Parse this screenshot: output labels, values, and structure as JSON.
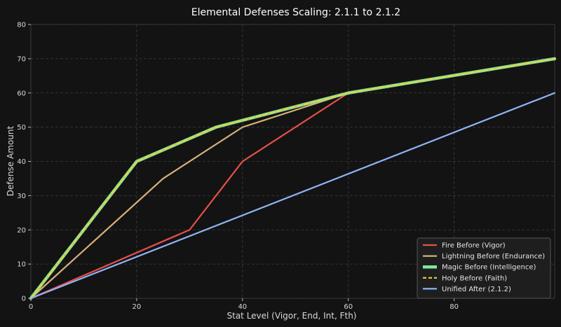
{
  "chart_data": {
    "type": "line",
    "title": "Elemental Defenses Scaling: 2.1.1 to 2.1.2",
    "xlabel": "Stat Level (Vigor, End, Int, Fth)",
    "ylabel": "Defense Amount",
    "xlim": [
      0,
      99
    ],
    "ylim": [
      0,
      80
    ],
    "xticks": [
      0,
      20,
      40,
      60,
      80
    ],
    "yticks": [
      0,
      10,
      20,
      30,
      40,
      50,
      60,
      70,
      80
    ],
    "grid": true,
    "legend_position": "bottom-right",
    "series": [
      {
        "name": "Fire Before (Vigor)",
        "color": "#e8504a",
        "style": "solid",
        "x": [
          0,
          30,
          40,
          60,
          99
        ],
        "y": [
          0,
          20,
          40,
          60,
          70
        ]
      },
      {
        "name": "Lightning Before (Endurance)",
        "color": "#d9b07a",
        "style": "solid",
        "x": [
          0,
          25,
          40,
          60,
          99
        ],
        "y": [
          0,
          35,
          50,
          60,
          70
        ]
      },
      {
        "name": "Magic Before (Intelligence)",
        "color": "#7ee8a0",
        "style": "solid-thick",
        "x": [
          0,
          20,
          35,
          60,
          99
        ],
        "y": [
          0,
          40,
          50,
          60,
          70
        ]
      },
      {
        "name": "Holy Before (Faith)",
        "color": "#f5d03a",
        "style": "dashed",
        "x": [
          0,
          20,
          35,
          60,
          99
        ],
        "y": [
          0,
          40,
          50,
          60,
          70
        ]
      },
      {
        "name": "Unified After (2.1.2)",
        "color": "#8fb4f5",
        "style": "solid",
        "x": [
          0,
          99
        ],
        "y": [
          0,
          60
        ]
      }
    ]
  }
}
